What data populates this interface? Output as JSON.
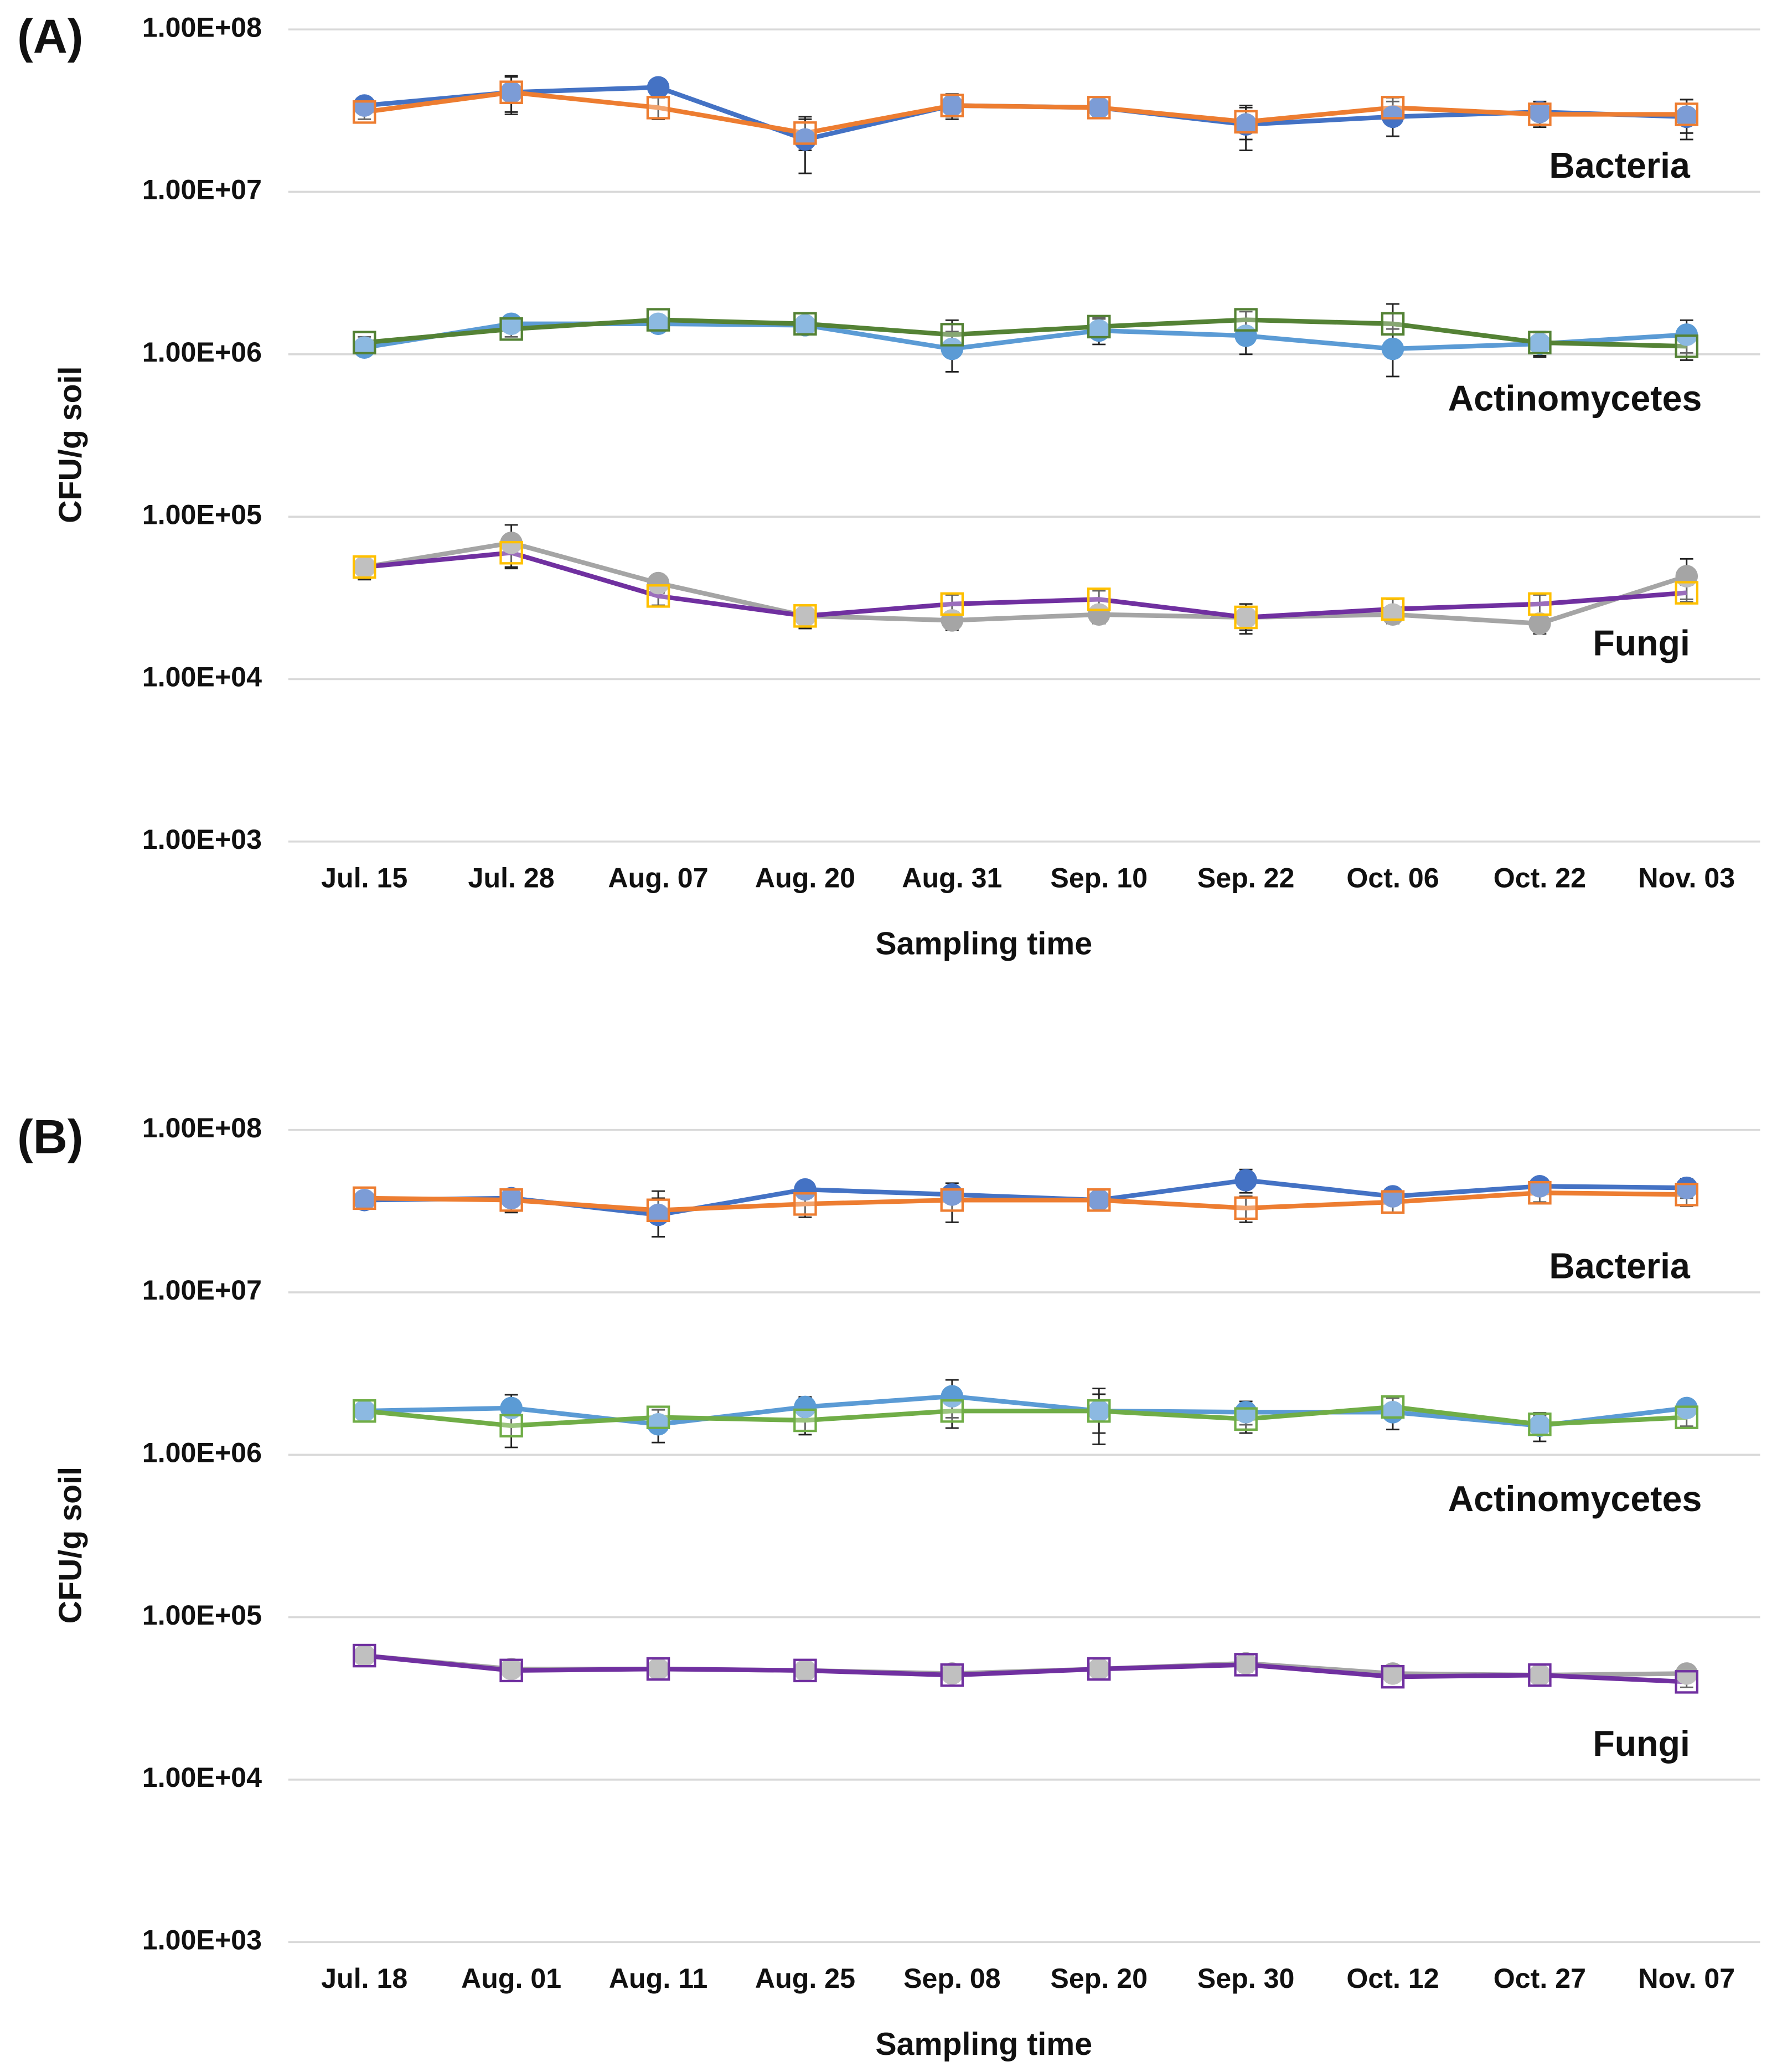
{
  "chart_data": [
    {
      "type": "line",
      "panel_label": "(A)",
      "x_label": "Sampling time",
      "y_label": "CFU/g soil",
      "categories": [
        "Jul. 15",
        "Jul. 28",
        "Aug. 07",
        "Aug. 20",
        "Aug. 31",
        "Sep. 10",
        "Sep. 22",
        "Oct. 06",
        "Oct. 22",
        "Nov. 03"
      ],
      "yscale": "log",
      "ylim": [
        1000,
        100000000
      ],
      "grid": true,
      "yticks": [
        {
          "value": 1000,
          "label": "1.00E+03"
        },
        {
          "value": 10000,
          "label": "1.00E+04"
        },
        {
          "value": 100000,
          "label": "1.00E+05"
        },
        {
          "value": 1000000,
          "label": "1.00E+06"
        },
        {
          "value": 10000000,
          "label": "1.00E+07"
        },
        {
          "value": 100000000,
          "label": "1.00E+08"
        }
      ],
      "annotations": [
        "Bacteria",
        "Actinomycetes",
        "Fungi"
      ],
      "series": [
        {
          "color": "#4472c4",
          "marker": "circle",
          "values": [
            34000000.0,
            41000000.0,
            44000000.0,
            21000000.0,
            34000000.0,
            33000000.0,
            26000000.0,
            29000000.0,
            31000000.0,
            29000000.0
          ],
          "errors": [
            3000000.0,
            10000000.0,
            3000000.0,
            8000000.0,
            6000000.0,
            4000000.0,
            8000000.0,
            7000000.0,
            5000000.0,
            8000000.0
          ]
        },
        {
          "color": "#ed7d31",
          "marker": "square",
          "values": [
            31000000.0,
            41000000.0,
            33000000.0,
            23000000.0,
            34000000.0,
            33000000.0,
            27000000.0,
            33000000.0,
            30000000.0,
            30000000.0
          ],
          "errors": [
            3000000.0,
            11000000.0,
            5000000.0,
            5000000.0,
            5000000.0,
            4000000.0,
            6000000.0,
            5000000.0,
            5000000.0,
            7000000.0
          ]
        },
        {
          "color": "#5b9bd5",
          "marker": "circle",
          "values": [
            1100000.0,
            1540000.0,
            1540000.0,
            1510000.0,
            1080000.0,
            1400000.0,
            1300000.0,
            1080000.0,
            1160000.0,
            1320000.0
          ],
          "errors": [
            100000.0,
            150000.0,
            100000.0,
            100000.0,
            300000.0,
            250000.0,
            300000.0,
            350000.0,
            200000.0,
            300000.0
          ]
        },
        {
          "color": "#548235",
          "marker": "square",
          "values": [
            1180000.0,
            1430000.0,
            1630000.0,
            1540000.0,
            1320000.0,
            1480000.0,
            1630000.0,
            1540000.0,
            1180000.0,
            1120000.0
          ],
          "errors": [
            100000.0,
            150000.0,
            100000.0,
            100000.0,
            300000.0,
            200000.0,
            200000.0,
            500000.0,
            200000.0,
            200000.0
          ]
        },
        {
          "color": "#a5a5a5",
          "marker": "circle",
          "values": [
            49000.0,
            69000.0,
            39000.0,
            24500.0,
            23000.0,
            25000.0,
            24000.0,
            25000.0,
            22000.0,
            43000.0
          ],
          "errors": [
            8000.0,
            20000.0,
            5000.0,
            4000.0,
            3000.0,
            3000.0,
            5000.0,
            3000.0,
            3000.0,
            12000.0
          ]
        },
        {
          "color": "#7030a0",
          "marker": "square",
          "marker_color": "#ffc000",
          "values": [
            49000.0,
            60000.0,
            32500.0,
            24500.0,
            29000.0,
            31000.0,
            24000.0,
            27000.0,
            29000.0,
            34000.0
          ],
          "errors": [
            8000.0,
            12000.0,
            4000.0,
            4000.0,
            4000.0,
            4000.0,
            4000.0,
            4000.0,
            4000.0,
            4000.0
          ]
        }
      ]
    },
    {
      "type": "line",
      "panel_label": "(B)",
      "x_label": "Sampling time",
      "y_label": "CFU/g soil",
      "categories": [
        "Jul. 18",
        "Aug. 01",
        "Aug. 11",
        "Aug. 25",
        "Sep. 08",
        "Sep. 20",
        "Sep. 30",
        "Oct. 12",
        "Oct. 27",
        "Nov. 07"
      ],
      "yscale": "log",
      "ylim": [
        1000,
        100000000
      ],
      "grid": true,
      "yticks": [
        {
          "value": 1000,
          "label": "1.00E+03"
        },
        {
          "value": 10000,
          "label": "1.00E+04"
        },
        {
          "value": 100000,
          "label": "1.00E+05"
        },
        {
          "value": 1000000,
          "label": "1.00E+06"
        },
        {
          "value": 10000000,
          "label": "1.00E+07"
        },
        {
          "value": 100000000,
          "label": "1.00E+08"
        }
      ],
      "annotations": [
        "Bacteria",
        "Actinomycetes",
        "Fungi"
      ],
      "series": [
        {
          "color": "#4472c4",
          "marker": "circle",
          "values": [
            37000000.0,
            38000000.0,
            30000000.0,
            43000000.0,
            40000000.0,
            37000000.0,
            49000000.0,
            39000000.0,
            45000000.0,
            44000000.0
          ],
          "errors": [
            4000000.0,
            4000000.0,
            8000000.0,
            5000000.0,
            4000000.0,
            3000000.0,
            8000000.0,
            3000000.0,
            5000000.0,
            6000000.0
          ]
        },
        {
          "color": "#ed7d31",
          "marker": "square",
          "values": [
            38000000.0,
            37000000.0,
            32000000.0,
            35000000.0,
            37000000.0,
            37000000.0,
            33000000.0,
            36000000.0,
            41000000.0,
            40000000.0
          ],
          "errors": [
            3000000.0,
            6000000.0,
            10000000.0,
            6000000.0,
            10000000.0,
            4000000.0,
            6000000.0,
            5000000.0,
            5000000.0,
            6000000.0
          ]
        },
        {
          "color": "#5b9bd5",
          "marker": "circle",
          "values": [
            1860000.0,
            1940000.0,
            1540000.0,
            1970000.0,
            2290000.0,
            1860000.0,
            1830000.0,
            1830000.0,
            1510000.0,
            1940000.0
          ],
          "errors": [
            200000.0,
            400000.0,
            350000.0,
            300000.0,
            600000.0,
            700000.0,
            300000.0,
            400000.0,
            300000.0,
            200000.0
          ]
        },
        {
          "color": "#70ad47",
          "marker": "square",
          "values": [
            1860000.0,
            1510000.0,
            1700000.0,
            1630000.0,
            1860000.0,
            1860000.0,
            1660000.0,
            1970000.0,
            1540000.0,
            1700000.0
          ],
          "errors": [
            200000.0,
            400000.0,
            200000.0,
            300000.0,
            400000.0,
            500000.0,
            300000.0,
            300000.0,
            200000.0,
            200000.0
          ]
        },
        {
          "color": "#a5a5a5",
          "marker": "circle",
          "values": [
            58000.0,
            48000.0,
            48000.0,
            47000.0,
            45000.0,
            48000.0,
            52000.0,
            45000.0,
            44000.0,
            45000.0
          ],
          "errors": [
            3000.0,
            3000.0,
            5000.0,
            3000.0,
            3000.0,
            3000.0,
            5000.0,
            3000.0,
            3000.0,
            3000.0
          ]
        },
        {
          "color": "#7030a0",
          "marker": "square",
          "values": [
            58000.0,
            47000.0,
            48000.0,
            47000.0,
            44000.0,
            48000.0,
            51000.0,
            43000.0,
            44000.0,
            40000.0
          ],
          "errors": [
            3000.0,
            3000.0,
            5000.0,
            3000.0,
            3000.0,
            3000.0,
            5000.0,
            3000.0,
            3000.0,
            3000.0
          ]
        }
      ]
    }
  ]
}
